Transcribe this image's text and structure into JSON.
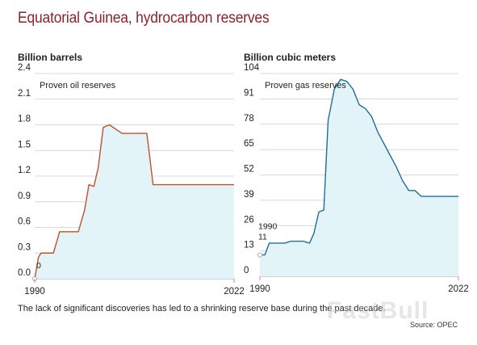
{
  "header": {
    "title": "Equatorial Guinea, hydrocarbon reserves"
  },
  "footer": {
    "note": "The lack of significant discoveries has led to a shrinking reserve base during the past decade.",
    "source": "Source: OPEC",
    "watermark": "FastBull"
  },
  "colors": {
    "title": "#8a2330",
    "oil_line": "#c0502e",
    "gas_line": "#1f6f9a",
    "fill": "#e3f4f8",
    "grid": "#cccccc"
  },
  "chart_data": [
    {
      "type": "area",
      "unit_label": "Billion barrels",
      "series_name": "Proven oil reserves",
      "ylim": [
        0,
        2.4
      ],
      "yticks": [
        "0.0",
        "0.3",
        "0.6",
        "0.9",
        "1.2",
        "1.5",
        "1.8",
        "2.1",
        "2.4"
      ],
      "xlim": [
        1990,
        2022
      ],
      "xticks": [
        "1990",
        "2022"
      ],
      "start_label": "0",
      "x": [
        1990,
        1990.6,
        1991,
        1993,
        1994,
        1997,
        1998,
        1998.7,
        1999.5,
        2000.2,
        2001,
        2002,
        2004,
        2006,
        2008,
        2009,
        2014,
        2022
      ],
      "values": [
        0,
        0.25,
        0.3,
        0.3,
        0.55,
        0.55,
        0.8,
        1.1,
        1.08,
        1.3,
        1.77,
        1.8,
        1.7,
        1.7,
        1.7,
        1.1,
        1.1,
        1.1
      ]
    },
    {
      "type": "area",
      "unit_label": "Billion cubic meters",
      "series_name": "Proven gas reserves",
      "ylim": [
        0,
        104
      ],
      "yticks": [
        "0",
        "13",
        "26",
        "39",
        "52",
        "65",
        "78",
        "91",
        "104"
      ],
      "xlim": [
        1990,
        2022
      ],
      "xticks": [
        "1990",
        "2022"
      ],
      "start_label": "11",
      "start_year_label": "1990",
      "x": [
        1990,
        1990.8,
        1991.5,
        1994,
        1995,
        1997,
        1998,
        1998.7,
        1999.5,
        2000.3,
        2001,
        2002,
        2003,
        2004,
        2005,
        2006,
        2007,
        2008,
        2009,
        2010,
        2011,
        2012,
        2013,
        2014,
        2015,
        2016,
        2022
      ],
      "values": [
        11,
        11,
        17,
        17,
        18,
        18,
        17,
        22,
        33,
        34,
        80,
        96,
        101,
        100,
        96,
        88,
        86,
        82,
        74,
        68,
        62,
        56,
        49,
        44,
        44,
        41,
        41
      ]
    }
  ]
}
